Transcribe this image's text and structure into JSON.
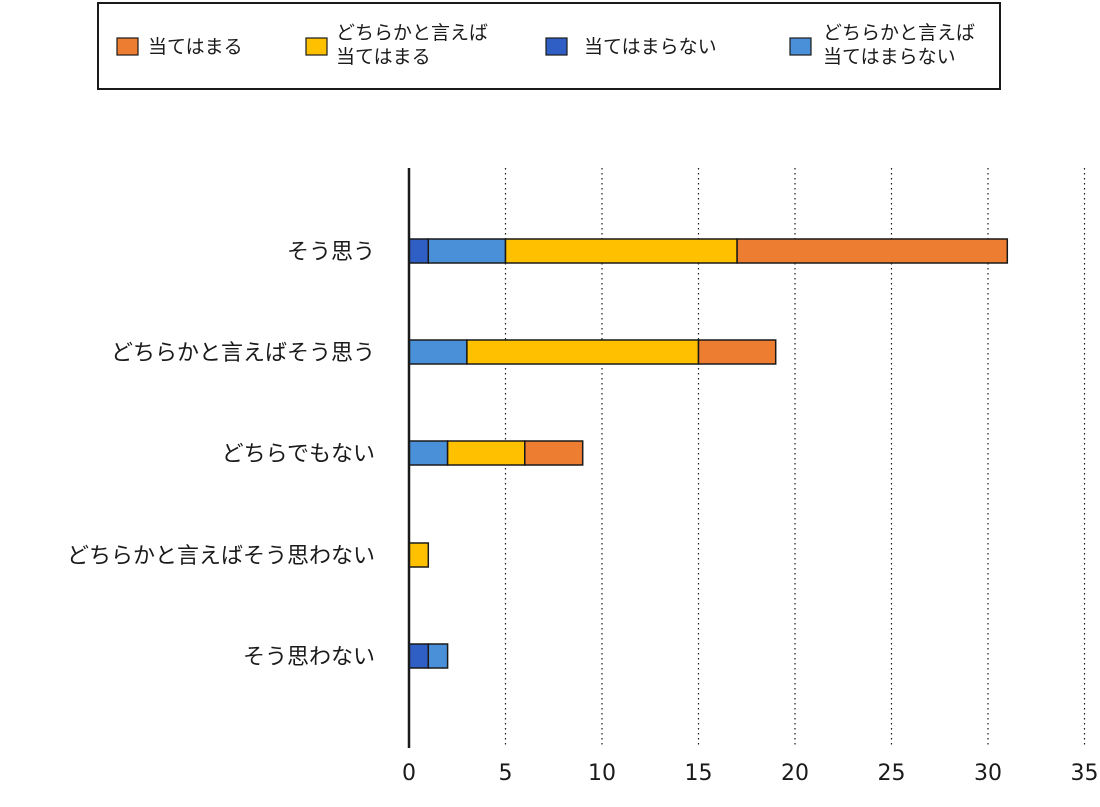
{
  "chart_data": {
    "type": "bar",
    "orientation": "horizontal",
    "stacked": true,
    "categories": [
      "そう思う",
      "どちらかと言えばそう思う",
      "どちらでもない",
      "どちらかと言えばそう思わない",
      "そう思わない"
    ],
    "series": [
      {
        "name": [
          "当てはまらない"
        ],
        "color": "#2f5fc4",
        "values": [
          1,
          0,
          0,
          0,
          1
        ]
      },
      {
        "name": [
          "どちらかと言えば",
          "当てはまらない"
        ],
        "color": "#4a90d9",
        "values": [
          4,
          3,
          2,
          0,
          1
        ]
      },
      {
        "name": [
          "どちらかと言えば",
          "当てはまる"
        ],
        "color": "#ffc000",
        "values": [
          12,
          12,
          4,
          1,
          0
        ]
      },
      {
        "name": [
          "当てはまる"
        ],
        "color": "#ed7d31",
        "values": [
          14,
          4,
          3,
          0,
          0
        ]
      }
    ],
    "legend_order": [
      3,
      2,
      0,
      1
    ],
    "legend_placement": "top",
    "xlim": [
      0,
      35
    ],
    "xticks": [
      0,
      5,
      10,
      15,
      20,
      25,
      30,
      35
    ],
    "grid": "vertical dotted",
    "title": "",
    "xlabel": "",
    "ylabel": ""
  }
}
